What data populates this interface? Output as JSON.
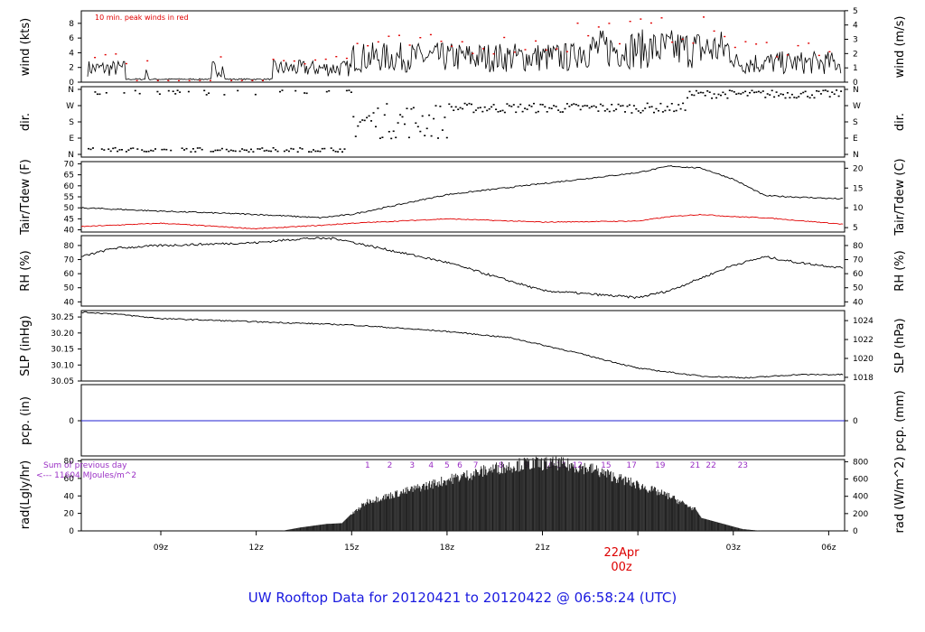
{
  "title": "UW Rooftop Data for 20120421  to  20120422 @ 06:58:24  (UTC)",
  "colors": {
    "title": "#1a1adf",
    "peak": "#e00000",
    "dewpoint": "#e00000",
    "precip": "#2020d0",
    "solar_labels": "#9a2fc4",
    "date": "#dd0000"
  },
  "date_label": {
    "line1": "22Apr",
    "line2": "00z"
  },
  "chart_data": [
    {
      "type": "line",
      "id": "wind",
      "ylabel": "wind (kts)",
      "ylabel_right": "wind (m/s)",
      "annotation": "10 min. peak winds in red",
      "left_ticks": [
        "0",
        "2",
        "4",
        "6",
        "8"
      ],
      "right_ticks": [
        "0",
        "1",
        "2",
        "3",
        "4",
        "5"
      ],
      "ylim": [
        0,
        9.7
      ],
      "series": [
        {
          "values": "noisy 0-8 kts; calm 06:30-08:30, 09:00-12:30z, peaks 8-9"
        }
      ]
    },
    {
      "type": "scatter",
      "id": "dir",
      "ylabel": "dir.",
      "ylabel_right": "dir.",
      "left_ticks": [
        "N",
        "E",
        "S",
        "W",
        "N"
      ],
      "right_ticks": [
        "N",
        "E",
        "S",
        "W",
        "N"
      ]
    },
    {
      "type": "line",
      "id": "temp",
      "ylabel": "Tair/Tdew (F)",
      "ylabel_right": "Tair/Tdew (C)",
      "left_ticks": [
        "40",
        "45",
        "50",
        "55",
        "60",
        "65",
        "70"
      ],
      "right_ticks": [
        "5",
        "10",
        "15",
        "20"
      ],
      "ylim": [
        39,
        71
      ],
      "series": [
        {
          "x": [
            6.5,
            9,
            12,
            14,
            15,
            18,
            21,
            24,
            25,
            26,
            27,
            28,
            30.5
          ],
          "values": [
            50,
            48.5,
            47,
            45.5,
            47,
            56,
            61,
            66,
            69,
            68,
            63,
            55.5,
            54
          ]
        },
        {
          "x": [
            6.5,
            9,
            12,
            14,
            15,
            18,
            21,
            24,
            25,
            26,
            27,
            28,
            30.5
          ],
          "values": [
            41.5,
            43,
            40.5,
            42,
            43,
            45,
            43.5,
            44,
            46,
            47,
            46,
            45.5,
            42.5
          ]
        }
      ]
    },
    {
      "type": "line",
      "id": "rh",
      "ylabel": "RH (%)",
      "ylabel_right": "RH (%)",
      "left_ticks": [
        "40",
        "50",
        "60",
        "70",
        "80"
      ],
      "right_ticks": [
        "40",
        "50",
        "60",
        "70",
        "80"
      ],
      "ylim": [
        37,
        87
      ],
      "series": [
        {
          "x": [
            6.5,
            7.5,
            9,
            12,
            13.5,
            14.5,
            15.5,
            18,
            21,
            24,
            25,
            27,
            28,
            29,
            30.5
          ],
          "values": [
            72,
            78,
            80,
            82,
            85,
            85,
            80,
            68,
            48,
            43,
            48,
            66,
            72,
            68,
            64
          ]
        }
      ]
    },
    {
      "type": "line",
      "id": "slp",
      "ylabel": "SLP (inHg)",
      "ylabel_right": "SLP (hPa)",
      "left_ticks": [
        "30.05",
        "30.10",
        "30.15",
        "30.20",
        "30.25"
      ],
      "right_ticks": [
        "1018",
        "1020",
        "1022",
        "1024"
      ],
      "ylim": [
        30.05,
        30.27
      ],
      "series": [
        {
          "x": [
            6.5,
            7.5,
            9,
            12,
            15,
            18,
            20,
            22,
            24,
            26,
            27.5,
            29,
            30.5
          ],
          "values": [
            30.265,
            30.26,
            30.245,
            30.235,
            30.225,
            30.205,
            30.185,
            30.14,
            30.09,
            30.065,
            30.06,
            30.07,
            30.07
          ]
        }
      ]
    },
    {
      "type": "line",
      "id": "pcp",
      "ylabel": "pcp. (in)",
      "ylabel_right": "pcp. (mm)",
      "left_ticks": [
        "0"
      ],
      "right_ticks": [
        "0"
      ],
      "series": [
        {
          "values": [
            0
          ]
        }
      ]
    },
    {
      "type": "area",
      "id": "rad",
      "ylabel": "rad(Lgly/hr)",
      "ylabel_right": "rad (W/m^2)",
      "left_ticks": [
        "0",
        "20",
        "40",
        "60",
        "80"
      ],
      "right_ticks": [
        "0",
        "200",
        "400",
        "600",
        "800"
      ],
      "ylim": [
        0,
        825
      ],
      "legend_text": [
        "Sum of previous day",
        "<---  11604 MJoules/m^2"
      ],
      "hour_labels": [
        "1",
        "2",
        "3",
        "4",
        "5",
        "6",
        "7",
        "8",
        "9",
        "10",
        "11",
        "12",
        "15",
        "17",
        "19",
        "21",
        "22",
        "23"
      ],
      "series": [
        {
          "x": [
            12.8,
            13.4,
            14.2,
            14.7,
            15,
            15.5,
            16.5,
            18,
            19.5,
            20.5,
            21.5,
            22.5,
            24,
            25,
            25.8,
            26,
            26.7,
            27.3,
            27.9
          ],
          "values": [
            0,
            40,
            80,
            90,
            200,
            360,
            460,
            620,
            760,
            820,
            820,
            760,
            560,
            420,
            260,
            150,
            80,
            20,
            0
          ]
        }
      ]
    }
  ],
  "x_axis": {
    "ticks": [
      "09z",
      "12z",
      "15z",
      "18z",
      "21z",
      "03z",
      "06z"
    ]
  }
}
